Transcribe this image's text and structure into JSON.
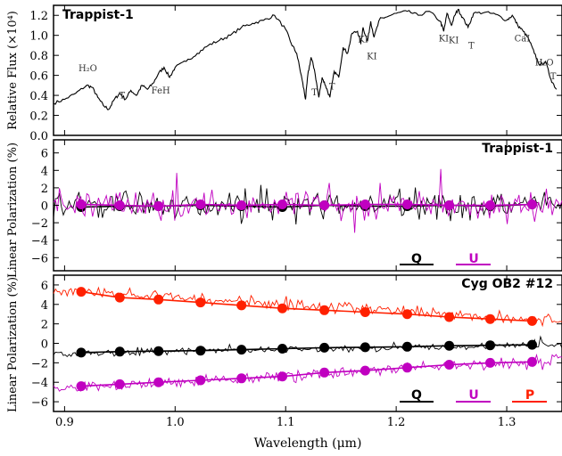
{
  "chart_data": [
    {
      "type": "line",
      "panel": "spectrum",
      "title": "Trappist-1",
      "ylabel": "Relative Flux (×10⁴)",
      "ylim": [
        0.0,
        1.3
      ],
      "xlim": [
        0.89,
        1.35
      ],
      "yticks": [
        "0.0",
        "0.2",
        "0.4",
        "0.6",
        "0.8",
        "1.0",
        "1.2"
      ],
      "series": [
        {
          "color": "#000000",
          "x": [
            0.89,
            0.9,
            0.91,
            0.92,
            0.925,
            0.93,
            0.935,
            0.94,
            0.945,
            0.95,
            0.955,
            0.96,
            0.965,
            0.97,
            0.975,
            0.98,
            0.985,
            0.99,
            0.995,
            1.0,
            1.01,
            1.02,
            1.03,
            1.04,
            1.05,
            1.06,
            1.07,
            1.08,
            1.09,
            1.1,
            1.105,
            1.11,
            1.115,
            1.118,
            1.12,
            1.123,
            1.126,
            1.13,
            1.133,
            1.136,
            1.14,
            1.144,
            1.148,
            1.152,
            1.156,
            1.16,
            1.165,
            1.168,
            1.17,
            1.174,
            1.177,
            1.18,
            1.185,
            1.19,
            1.2,
            1.21,
            1.22,
            1.23,
            1.24,
            1.243,
            1.246,
            1.25,
            1.253,
            1.256,
            1.26,
            1.265,
            1.27,
            1.28,
            1.29,
            1.3,
            1.305,
            1.31,
            1.315,
            1.32,
            1.325,
            1.33,
            1.335,
            1.34,
            1.345
          ],
          "y": [
            0.32,
            0.36,
            0.42,
            0.5,
            0.48,
            0.38,
            0.3,
            0.26,
            0.36,
            0.42,
            0.36,
            0.45,
            0.4,
            0.5,
            0.46,
            0.52,
            0.62,
            0.68,
            0.58,
            0.68,
            0.74,
            0.82,
            0.9,
            0.95,
            1.0,
            1.08,
            1.12,
            1.15,
            1.2,
            1.06,
            0.92,
            0.82,
            0.55,
            0.36,
            0.6,
            0.78,
            0.66,
            0.38,
            0.58,
            0.5,
            0.38,
            0.64,
            0.58,
            0.88,
            0.82,
            1.02,
            1.04,
            0.92,
            1.08,
            0.94,
            1.14,
            0.98,
            1.16,
            1.18,
            1.22,
            1.24,
            1.2,
            1.24,
            1.14,
            1.04,
            1.22,
            1.1,
            1.2,
            1.26,
            1.18,
            1.08,
            1.22,
            1.23,
            1.21,
            1.15,
            1.2,
            1.1,
            1.04,
            0.96,
            0.82,
            0.7,
            0.74,
            0.56,
            0.46
          ]
        }
      ],
      "annotations": [
        {
          "text": "H₂O",
          "x": 0.921,
          "y": 0.64
        },
        {
          "text": "T",
          "x": 0.952,
          "y": 0.37
        },
        {
          "text": "FeH",
          "x": 0.987,
          "y": 0.42
        },
        {
          "text": "T",
          "x": 1.126,
          "y": 0.4
        },
        {
          "text": "T",
          "x": 1.142,
          "y": 0.46
        },
        {
          "text": "KI",
          "x": 1.17,
          "y": 0.93
        },
        {
          "text": "KI",
          "x": 1.178,
          "y": 0.76
        },
        {
          "text": "KI",
          "x": 1.243,
          "y": 0.94
        },
        {
          "text": "KI",
          "x": 1.252,
          "y": 0.92
        },
        {
          "text": "T",
          "x": 1.268,
          "y": 0.87
        },
        {
          "text": "CaI",
          "x": 1.314,
          "y": 0.94
        },
        {
          "text": "H₂O",
          "x": 1.334,
          "y": 0.7
        },
        {
          "text": "T",
          "x": 1.342,
          "y": 0.56
        }
      ]
    },
    {
      "type": "line",
      "panel": "trappist-polarization",
      "title": "Trappist-1",
      "ylabel": "Linear Polarization (%)",
      "ylim": [
        -7.5,
        7.5
      ],
      "xlim": [
        0.89,
        1.35
      ],
      "yticks": [
        "−6",
        "−4",
        "−2",
        "0",
        "2",
        "4",
        "6"
      ],
      "series": [
        {
          "name": "Q",
          "color": "#000000",
          "mean": 0.0,
          "noise": 1.0,
          "bin_x": [
            0.915,
            0.95,
            0.985,
            1.023,
            1.06,
            1.097,
            1.135,
            1.172,
            1.21,
            1.248,
            1.285,
            1.323
          ],
          "bin_y": [
            -0.2,
            -0.1,
            -0.1,
            0.0,
            -0.1,
            -0.2,
            0.0,
            -0.1,
            -0.1,
            0.0,
            -0.1,
            0.1
          ]
        },
        {
          "name": "U",
          "color": "#c000c0",
          "mean": 0.0,
          "noise": 1.1,
          "bin_x": [
            0.915,
            0.95,
            0.985,
            1.023,
            1.06,
            1.097,
            1.135,
            1.172,
            1.21,
            1.248,
            1.285,
            1.323
          ],
          "bin_y": [
            0.1,
            0.0,
            -0.1,
            0.1,
            0.0,
            0.1,
            0.0,
            0.1,
            0.1,
            0.0,
            0.0,
            0.1
          ]
        }
      ],
      "legend_placement": "bottom-right"
    },
    {
      "type": "line",
      "panel": "cyg-ob2-polarization",
      "title": "Cyg OB2 #12",
      "ylabel": "Linear Polarization (%)",
      "ylim": [
        -7.0,
        7.0
      ],
      "xlim": [
        0.89,
        1.35
      ],
      "yticks": [
        "−6",
        "−4",
        "−2",
        "0",
        "2",
        "4",
        "6"
      ],
      "series": [
        {
          "name": "Q",
          "color": "#000000",
          "trend": [
            0.89,
            -1.05,
            1.35,
            -0.15
          ],
          "noise": 0.25,
          "bin_x": [
            0.915,
            0.95,
            0.985,
            1.023,
            1.06,
            1.097,
            1.135,
            1.172,
            1.21,
            1.248,
            1.285,
            1.323
          ],
          "bin_y": [
            -0.95,
            -0.85,
            -0.8,
            -0.75,
            -0.65,
            -0.55,
            -0.45,
            -0.4,
            -0.35,
            -0.25,
            -0.2,
            -0.15
          ]
        },
        {
          "name": "U",
          "color": "#c000c0",
          "trend": [
            0.89,
            -4.7,
            1.35,
            -1.7
          ],
          "noise": 0.4,
          "bin_x": [
            0.915,
            0.95,
            0.985,
            1.023,
            1.06,
            1.097,
            1.135,
            1.172,
            1.21,
            1.248,
            1.285,
            1.323
          ],
          "bin_y": [
            -4.4,
            -4.2,
            -4.0,
            -3.8,
            -3.6,
            -3.4,
            -3.0,
            -2.8,
            -2.5,
            -2.2,
            -2.0,
            -1.9
          ]
        },
        {
          "name": "P",
          "color": "#ff2000",
          "trend": [
            0.89,
            5.5,
            1.35,
            2.3
          ],
          "noise": 0.4,
          "bin_x": [
            0.915,
            0.95,
            0.985,
            1.023,
            1.06,
            1.097,
            1.135,
            1.172,
            1.21,
            1.248,
            1.285,
            1.323
          ],
          "bin_y": [
            5.3,
            4.7,
            4.5,
            4.2,
            3.9,
            3.6,
            3.4,
            3.2,
            3.0,
            2.7,
            2.5,
            2.3
          ]
        }
      ],
      "legend_placement": "bottom-right"
    }
  ],
  "xaxis": {
    "label": "Wavelength (μm)",
    "ticks": [
      "0.9",
      "1.0",
      "1.1",
      "1.2",
      "1.3"
    ],
    "tick_values": [
      0.9,
      1.0,
      1.1,
      1.2,
      1.3
    ]
  }
}
